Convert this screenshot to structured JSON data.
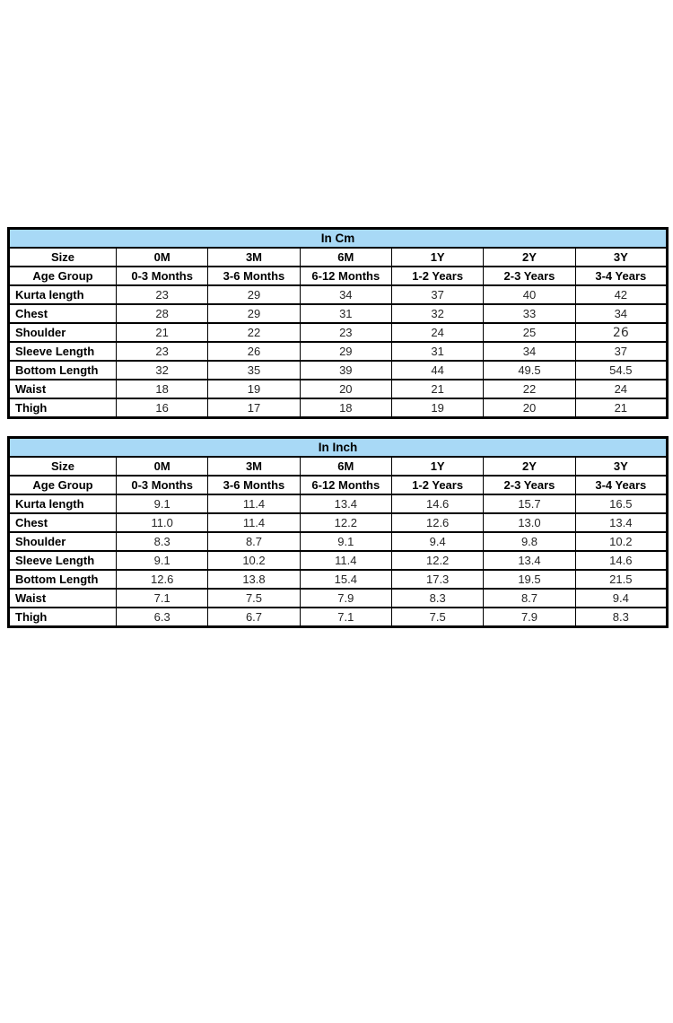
{
  "page": {
    "background": "#ffffff"
  },
  "colors": {
    "table_header_fill": "#a8d9f6",
    "table_border": "#000000",
    "text": "#1a1a1a"
  },
  "chart_data": [
    {
      "type": "table",
      "title": "In Cm",
      "header_rows": [
        [
          "Size",
          "0M",
          "3M",
          "6M",
          "1Y",
          "2Y",
          "3Y"
        ],
        [
          "Age Group",
          "0-3 Months",
          "3-6 Months",
          "6-12 Months",
          "1-2 Years",
          "2-3 Years",
          "3-4 Years"
        ]
      ],
      "data_rows": [
        [
          "Kurta length",
          "23",
          "29",
          "34",
          "37",
          "40",
          "42"
        ],
        [
          "Chest",
          "28",
          "29",
          "31",
          "32",
          "33",
          "34"
        ],
        [
          "Shoulder",
          "21",
          "22",
          "23",
          "24",
          "25",
          "26"
        ],
        [
          "Sleeve Length",
          "23",
          "26",
          "29",
          "31",
          "34",
          "37"
        ],
        [
          "Bottom Length",
          "32",
          "35",
          "39",
          "44",
          "49.5",
          "54.5"
        ],
        [
          "Waist",
          "18",
          "19",
          "20",
          "21",
          "22",
          "24"
        ],
        [
          "Thigh",
          "16",
          "17",
          "18",
          "19",
          "20",
          "21"
        ]
      ]
    },
    {
      "type": "table",
      "title": "In Inch",
      "header_rows": [
        [
          "Size",
          "0M",
          "3M",
          "6M",
          "1Y",
          "2Y",
          "3Y"
        ],
        [
          "Age Group",
          "0-3 Months",
          "3-6 Months",
          "6-12 Months",
          "1-2 Years",
          "2-3 Years",
          "3-4 Years"
        ]
      ],
      "data_rows": [
        [
          "Kurta length",
          "9.1",
          "11.4",
          "13.4",
          "14.6",
          "15.7",
          "16.5"
        ],
        [
          "Chest",
          "11.0",
          "11.4",
          "12.2",
          "12.6",
          "13.0",
          "13.4"
        ],
        [
          "Shoulder",
          "8.3",
          "8.7",
          "9.1",
          "9.4",
          "9.8",
          "10.2"
        ],
        [
          "Sleeve Length",
          "9.1",
          "10.2",
          "11.4",
          "12.2",
          "13.4",
          "14.6"
        ],
        [
          "Bottom Length",
          "12.6",
          "13.8",
          "15.4",
          "17.3",
          "19.5",
          "21.5"
        ],
        [
          "Waist",
          "7.1",
          "7.5",
          "7.9",
          "8.3",
          "8.7",
          "9.4"
        ],
        [
          "Thigh",
          "6.3",
          "6.7",
          "7.1",
          "7.5",
          "7.9",
          "8.3"
        ]
      ]
    }
  ]
}
